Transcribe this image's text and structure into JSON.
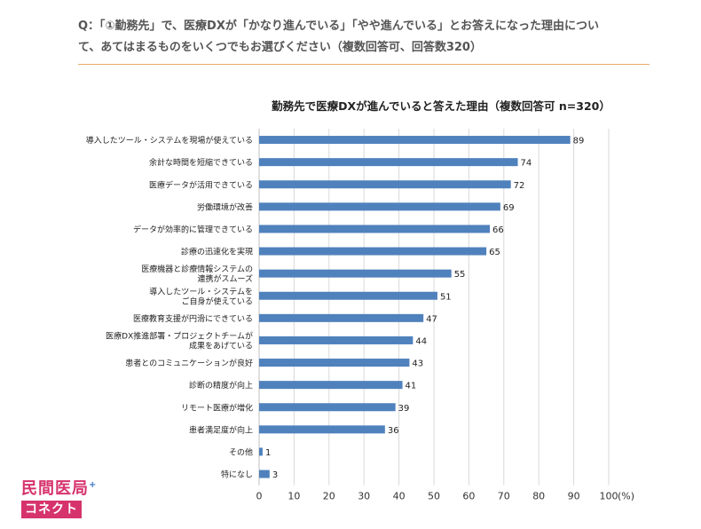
{
  "question": {
    "line1": "Q：「①勤務先」で、医療DXが「かなり進んでいる」「やや進んでいる」とお答えになった理由につい",
    "line2": "て、あてはまるものをいくつでもお選びください（複数回答可、回答数320）"
  },
  "chart_data": {
    "type": "bar",
    "orientation": "horizontal",
    "title": "勤務先で医療DXが進んでいると答えた理由（複数回答可 n=320）",
    "categories": [
      [
        "導入したツール・システムを現場が使えている"
      ],
      [
        "余計な時間を短縮できている"
      ],
      [
        "医療データが活用できている"
      ],
      [
        "労働環境が改善"
      ],
      [
        "データが効率的に管理できている"
      ],
      [
        "診療の迅速化を実現"
      ],
      [
        "医療機器と診療情報システムの",
        "連携がスムーズ"
      ],
      [
        "導入したツール・システムを",
        "ご自身が使えている"
      ],
      [
        "医療教育支援が円滑にできている"
      ],
      [
        "医療DX推進部署・プロジェクトチームが",
        "成果をあげている"
      ],
      [
        "患者とのコミュニケーションが良好"
      ],
      [
        "診断の精度が向上"
      ],
      [
        "リモート医療が増化"
      ],
      [
        "患者満足度が向上"
      ],
      [
        "その他"
      ],
      [
        "特になし"
      ]
    ],
    "values": [
      89,
      74,
      72,
      69,
      66,
      65,
      55,
      51,
      47,
      44,
      43,
      41,
      39,
      36,
      1,
      3
    ],
    "xlim": [
      0,
      100
    ],
    "xticks": [
      0,
      10,
      20,
      30,
      40,
      50,
      60,
      70,
      80,
      90,
      100
    ],
    "x_unit": "(%)",
    "bar_color": "#4f81bd",
    "grid": true
  },
  "logo": {
    "top": "民間医局",
    "plus": "+",
    "bottom": "コネクト",
    "color": "#d6336c"
  }
}
